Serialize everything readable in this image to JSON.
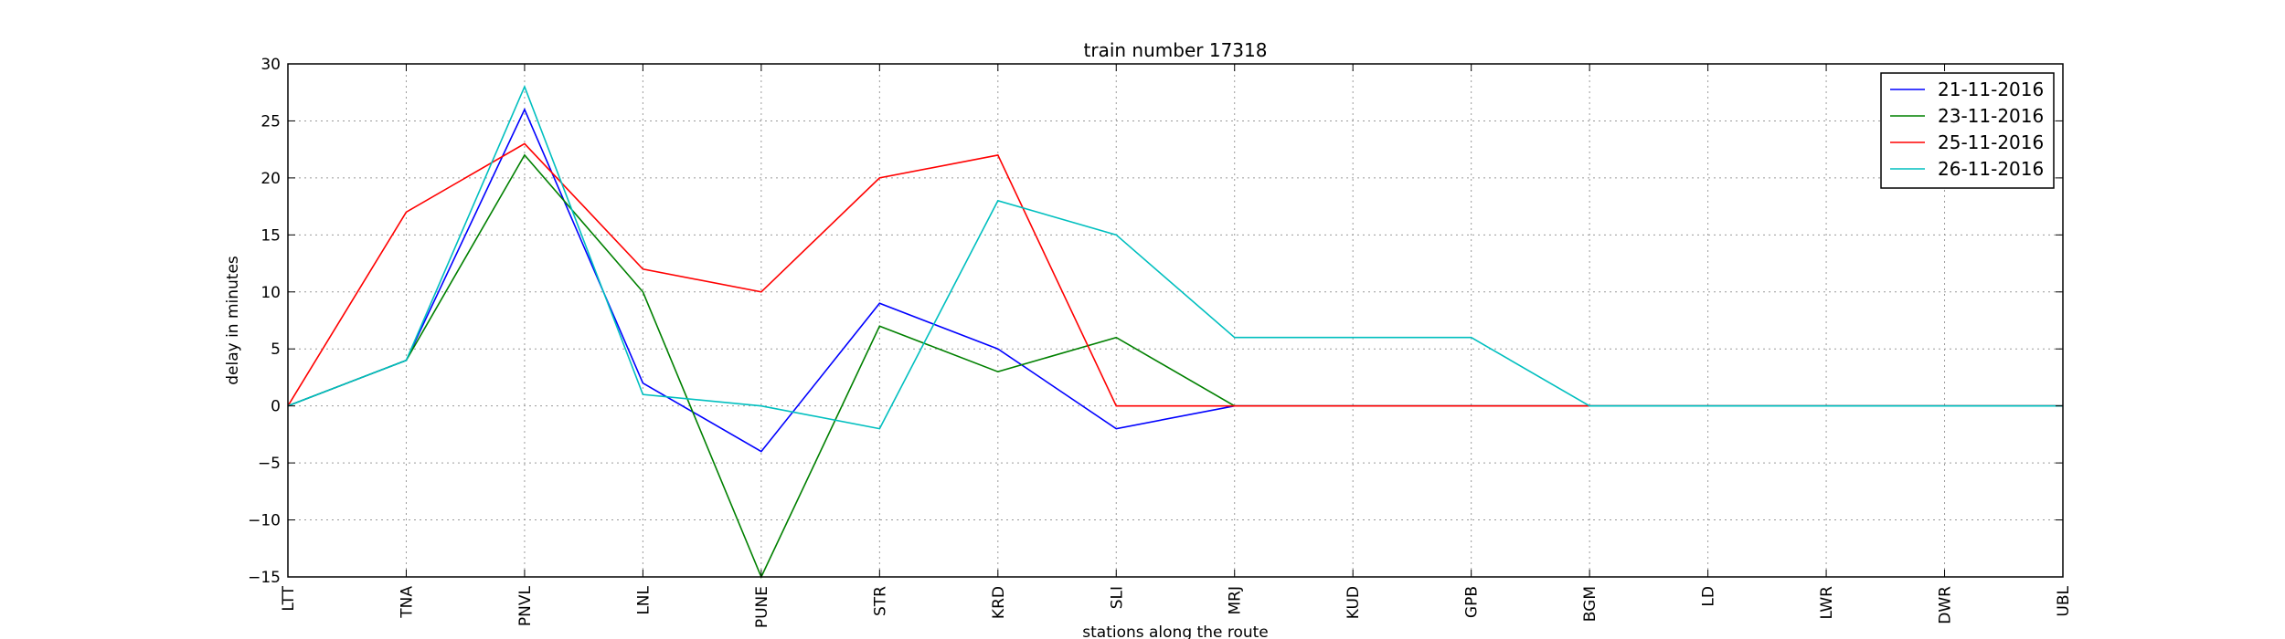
{
  "chart_data": {
    "type": "line",
    "title": "train number 17318",
    "xlabel": "stations along the route",
    "ylabel": "delay in minutes",
    "categories": [
      "LTT",
      "TNA",
      "PNVL",
      "LNL",
      "PUNE",
      "STR",
      "KRD",
      "SLI",
      "MRJ",
      "KUD",
      "GPB",
      "BGM",
      "LD",
      "LWR",
      "DWR",
      "UBL"
    ],
    "ylim": [
      -15,
      30
    ],
    "yticks": [
      -15,
      -10,
      -5,
      0,
      5,
      10,
      15,
      20,
      25,
      30
    ],
    "grid": true,
    "legend_position": "top-right",
    "series": [
      {
        "name": "21-11-2016",
        "color": "#0000ff",
        "values": [
          0,
          4,
          26,
          2,
          -4,
          9,
          5,
          -2,
          0,
          0,
          0,
          0,
          0,
          0,
          0,
          0
        ]
      },
      {
        "name": "23-11-2016",
        "color": "#008000",
        "values": [
          0,
          4,
          22,
          10,
          -15,
          7,
          3,
          6,
          0,
          0,
          0,
          0,
          0,
          0,
          0,
          0
        ]
      },
      {
        "name": "25-11-2016",
        "color": "#ff0000",
        "values": [
          0,
          17,
          23,
          12,
          10,
          20,
          22,
          0,
          0,
          0,
          0,
          0,
          0,
          0,
          0,
          0
        ]
      },
      {
        "name": "26-11-2016",
        "color": "#00bfbf",
        "values": [
          0,
          4,
          28,
          1,
          0,
          -2,
          18,
          15,
          6,
          6,
          6,
          0,
          0,
          0,
          0,
          0
        ]
      }
    ]
  }
}
